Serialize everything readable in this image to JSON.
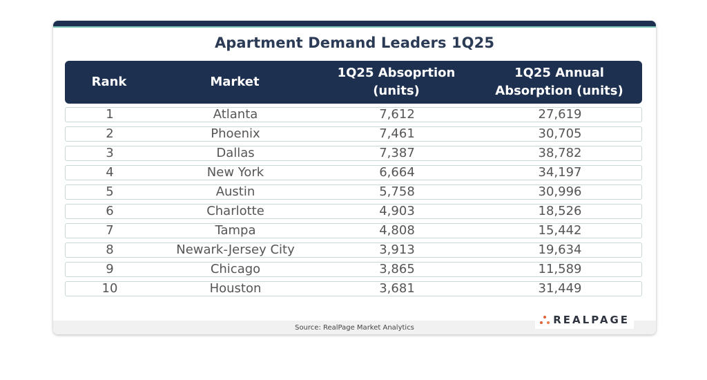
{
  "title": "Apartment Demand Leaders 1Q25",
  "table": {
    "headers": {
      "rank": "Rank",
      "market": "Market",
      "q_absorption_line1": "1Q25 Absoprtion",
      "q_absorption_line2": "(units)",
      "annual_absorption_line1": "1Q25 Annual",
      "annual_absorption_line2": "Absorption (units)"
    },
    "rows": [
      {
        "rank": "1",
        "market": "Atlanta",
        "q_absorption": "7,612",
        "annual_absorption": "27,619"
      },
      {
        "rank": "2",
        "market": "Phoenix",
        "q_absorption": "7,461",
        "annual_absorption": "30,705"
      },
      {
        "rank": "3",
        "market": "Dallas",
        "q_absorption": "7,387",
        "annual_absorption": "38,782"
      },
      {
        "rank": "4",
        "market": "New York",
        "q_absorption": "6,664",
        "annual_absorption": "34,197"
      },
      {
        "rank": "5",
        "market": "Austin",
        "q_absorption": "5,758",
        "annual_absorption": "30,996"
      },
      {
        "rank": "6",
        "market": "Charlotte",
        "q_absorption": "4,903",
        "annual_absorption": "18,526"
      },
      {
        "rank": "7",
        "market": "Tampa",
        "q_absorption": "4,808",
        "annual_absorption": "15,442"
      },
      {
        "rank": "8",
        "market": "Newark-Jersey City",
        "q_absorption": "3,913",
        "annual_absorption": "19,634"
      },
      {
        "rank": "9",
        "market": "Chicago",
        "q_absorption": "3,865",
        "annual_absorption": "11,589"
      },
      {
        "rank": "10",
        "market": "Houston",
        "q_absorption": "3,681",
        "annual_absorption": "31,449"
      }
    ]
  },
  "footer": {
    "source": "Source: RealPage Market Analytics",
    "logo_text": "REALPAGE",
    "logo_icon": "three-dots-logo-icon"
  },
  "colors": {
    "header_bg": "#1e3050",
    "accent_teal": "#79c2b3",
    "logo_orange": "#e0603a"
  }
}
